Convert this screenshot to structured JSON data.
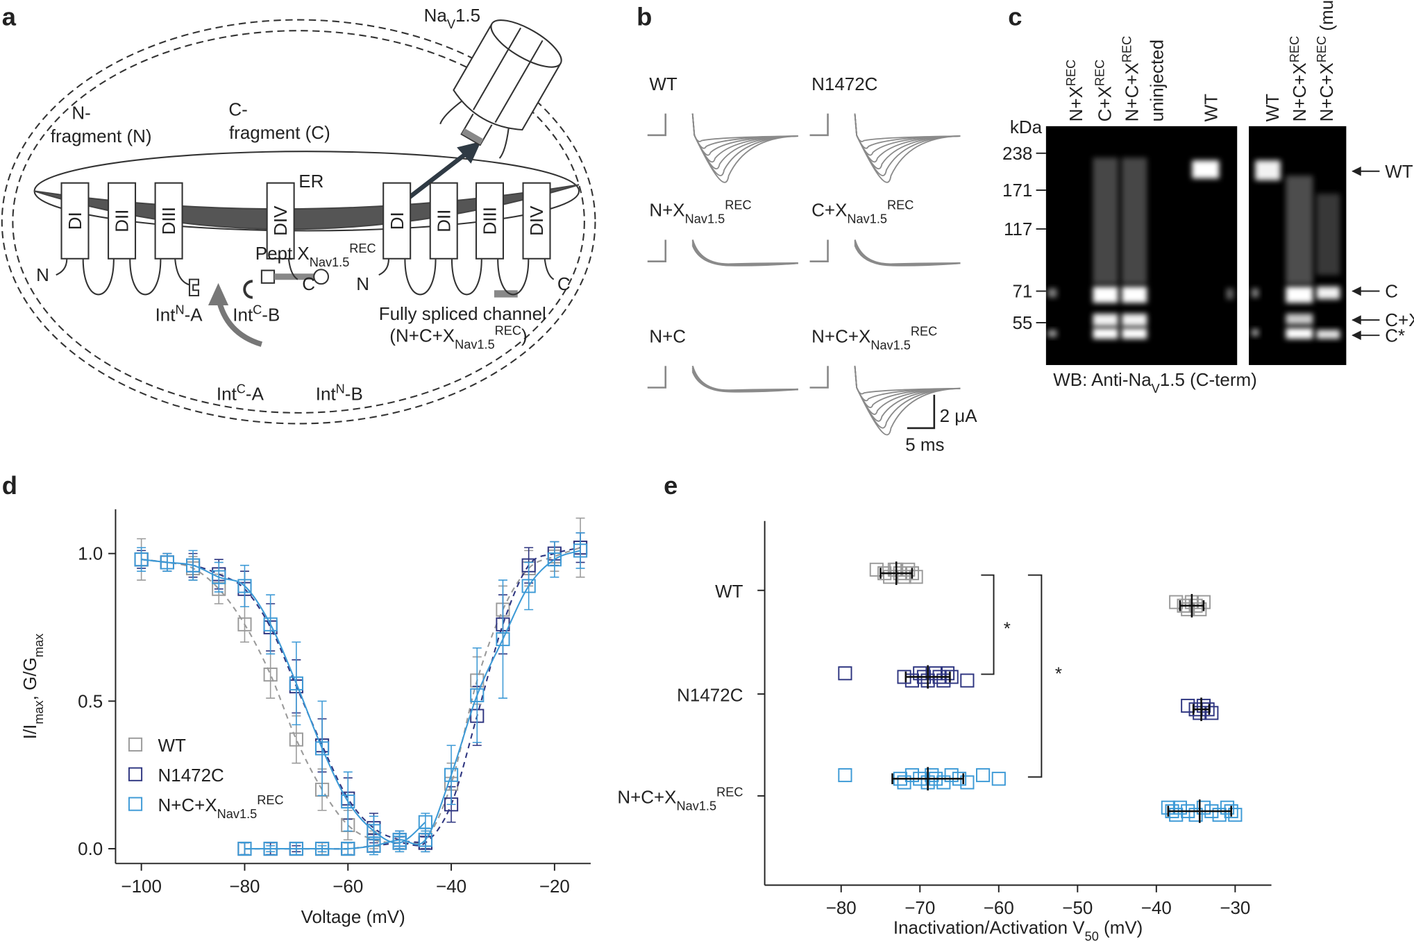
{
  "panels": {
    "a": {
      "label": "a",
      "nav": [
        "Na",
        "V",
        "1.5"
      ],
      "n_fragment": [
        "N-",
        "fragment (N)"
      ],
      "c_fragment": [
        "C-",
        "fragment (C)"
      ],
      "er": "ER",
      "domains_left": [
        "DI",
        "DII",
        "DIII",
        "DIV"
      ],
      "domains_right": [
        "DI",
        "DII",
        "DIII",
        "DIV"
      ],
      "termini": [
        "N",
        "C",
        "N",
        "C"
      ],
      "int_n_a": [
        "Int",
        "N",
        "-A"
      ],
      "int_c_b": [
        "Int",
        "C",
        "-B"
      ],
      "spliced": [
        "Fully spliced channel",
        "(N+C+X",
        "Nav1.5",
        "REC",
        ")"
      ],
      "peptide": [
        "Pept X",
        "Nav1.5",
        "REC"
      ],
      "int_c_a": [
        "Int",
        "C",
        "-A"
      ],
      "int_n_b": [
        "Int",
        "N",
        "-B"
      ]
    },
    "b": {
      "label": "b",
      "conditions": [
        [
          "WT"
        ],
        [
          "N1472C"
        ],
        [
          "N+X",
          "Nav1.5",
          "REC"
        ],
        [
          "C+X",
          "Nav1.5",
          "REC"
        ],
        [
          "N+C"
        ],
        [
          "N+C+X",
          "Nav1.5",
          "REC"
        ]
      ],
      "scale_current": "2 μA",
      "scale_time": "5 ms"
    },
    "c": {
      "label": "c",
      "lanes_left": [
        [
          "N+X",
          "REC"
        ],
        [
          "C+X",
          "REC"
        ],
        [
          "N+C+X",
          "REC"
        ],
        [
          "uninjected"
        ],
        [
          "WT"
        ]
      ],
      "lanes_right": [
        [
          "WT"
        ],
        [
          "N+C+X",
          "REC"
        ],
        [
          "N+C+X",
          "REC",
          " (mut.)"
        ]
      ],
      "marker_unit": "kDa",
      "markers": [
        238,
        171,
        117,
        71,
        55
      ],
      "bands": [
        "WT",
        "C",
        "C+X",
        "C*"
      ],
      "caption": [
        "WB: Anti-Na",
        "V",
        "1.5 (C-term)"
      ]
    }
  },
  "chart_data": [
    {
      "type": "line",
      "panel_label": "d",
      "xlabel": "Voltage (mV)",
      "ylabel": [
        "I/I",
        "max",
        ", G/G",
        "max"
      ],
      "xlim": [
        -105,
        -13
      ],
      "ylim": [
        -0.05,
        1.15
      ],
      "xticks": [
        {
          "value": -100,
          "label": "−100"
        },
        {
          "value": -80,
          "label": "−80"
        },
        {
          "value": -60,
          "label": "−60"
        },
        {
          "value": -40,
          "label": "−40"
        },
        {
          "value": -20,
          "label": "−20"
        }
      ],
      "yticks": [
        {
          "value": 0,
          "label": "0.0"
        },
        {
          "value": 0.5,
          "label": "0.5"
        },
        {
          "value": 1,
          "label": "1.0"
        }
      ],
      "legend": "center left",
      "x": [
        -100,
        -95,
        -90,
        -85,
        -80,
        -75,
        -70,
        -65,
        -60,
        -55,
        -50,
        -45,
        -40,
        -35,
        -30,
        -25,
        -20,
        -15
      ],
      "series": [
        {
          "name": [
            "WT"
          ],
          "color": "#9a9a9a",
          "dashed": true,
          "inactivation": [
            0.98,
            0.97,
            0.95,
            0.88,
            0.76,
            0.59,
            0.37,
            0.2,
            0.08,
            0.03,
            0.02,
            0.02,
            null,
            null,
            null,
            null,
            null,
            null
          ],
          "inactivation_err": [
            0.07,
            0.03,
            0.04,
            0.05,
            0.06,
            0.08,
            0.08,
            0.07,
            0.05,
            0.03,
            0.02,
            0.02,
            null,
            null,
            null,
            null,
            null,
            null
          ],
          "activation": [
            null,
            null,
            null,
            null,
            0,
            0,
            0,
            0,
            0,
            0.01,
            0.02,
            0.03,
            0.22,
            0.57,
            0.81,
            0.95,
            0.99,
            1.02
          ],
          "activation_err": [
            null,
            null,
            null,
            null,
            0.02,
            0.02,
            0.01,
            0.02,
            0.02,
            0.02,
            0.03,
            0.03,
            0.07,
            0.08,
            0.08,
            0.06,
            0.05,
            0.1
          ]
        },
        {
          "name": [
            "N1472C"
          ],
          "color": "#2e3580",
          "dashed": true,
          "inactivation": [
            0.98,
            0.97,
            0.96,
            0.93,
            0.88,
            0.75,
            0.55,
            0.35,
            0.17,
            0.07,
            0.03,
            0.02,
            null,
            null,
            null,
            null,
            null,
            null
          ],
          "inactivation_err": [
            0.03,
            0.03,
            0.04,
            0.05,
            0.06,
            0.08,
            0.09,
            0.09,
            0.07,
            0.05,
            0.03,
            0.02,
            null,
            null,
            null,
            null,
            null,
            null
          ],
          "activation": [
            null,
            null,
            null,
            null,
            0,
            0,
            0,
            0,
            0,
            0.01,
            0.02,
            0.02,
            0.15,
            0.45,
            0.76,
            0.96,
            1.0,
            1.02
          ],
          "activation_err": [
            null,
            null,
            null,
            null,
            0.02,
            0.02,
            0.01,
            0.01,
            0.02,
            0.02,
            0.02,
            0.03,
            0.06,
            0.1,
            0.1,
            0.06,
            0.04,
            0.05
          ]
        },
        {
          "name": [
            "N+C+X",
            "Nav1.5",
            "REC"
          ],
          "color": "#3d9ad6",
          "dashed": false,
          "inactivation": [
            0.98,
            0.97,
            0.96,
            0.92,
            0.89,
            0.76,
            0.56,
            0.34,
            0.16,
            0.06,
            0.02,
            0.09,
            null,
            null,
            null,
            null,
            null,
            null
          ],
          "inactivation_err": [
            0.04,
            0.03,
            0.05,
            0.05,
            0.07,
            0.1,
            0.14,
            0.16,
            0.1,
            0.05,
            0.03,
            0.03,
            null,
            null,
            null,
            null,
            null,
            null
          ],
          "activation": [
            null,
            null,
            null,
            null,
            0,
            0,
            0,
            0,
            0,
            0.01,
            0.03,
            0.03,
            0.25,
            0.52,
            0.71,
            0.89,
            0.98,
            1.01
          ],
          "activation_err": [
            null,
            null,
            null,
            null,
            0.02,
            0.01,
            0.02,
            0.01,
            0.02,
            0.03,
            0.03,
            0.04,
            0.1,
            0.16,
            0.2,
            0.08,
            0.06,
            0.06
          ]
        }
      ]
    },
    {
      "type": "scatter",
      "panel_label": "e",
      "xlabel": [
        "Inactivation/Activation V",
        "50",
        " (mV)"
      ],
      "xlim": [
        -89.7,
        -25.4
      ],
      "xticks": [
        {
          "value": -80,
          "label": "−80"
        },
        {
          "value": -70,
          "label": "−70"
        },
        {
          "value": -60,
          "label": "−60"
        },
        {
          "value": -50,
          "label": "−50"
        },
        {
          "value": -40,
          "label": "−40"
        },
        {
          "value": -30,
          "label": "−30"
        }
      ],
      "categories": [
        [
          "WT"
        ],
        [
          "N1472C"
        ],
        [
          "N+C+X",
          "Nav1.5",
          "REC"
        ]
      ],
      "groups": [
        {
          "color": "#9a9a9a",
          "inactivation": [
            -75.5,
            -74.5,
            -73.8,
            -73,
            -72.5,
            -72,
            -71.5,
            -71,
            -70.5,
            -73.2
          ],
          "inactivation_mean": -73,
          "inactivation_sd": 2,
          "activation": [
            -37.5,
            -36.5,
            -36,
            -35.5,
            -35,
            -34.5,
            -34
          ],
          "activation_mean": -35.5,
          "activation_sd": 1.5
        },
        {
          "color": "#2e3580",
          "inactivation": [
            -79.5,
            -72,
            -71,
            -70,
            -69.5,
            -69,
            -68,
            -67.5,
            -67,
            -66.5,
            -66,
            -64
          ],
          "inactivation_mean": -69,
          "inactivation_sd": 2.8,
          "activation": [
            -36,
            -35,
            -34.5,
            -34,
            -33.5,
            -33
          ],
          "activation_mean": -34.3,
          "activation_sd": 1
        },
        {
          "color": "#3d9ad6",
          "inactivation": [
            -79.5,
            -72.5,
            -72,
            -71,
            -70,
            -69,
            -68.5,
            -68,
            -67,
            -66,
            -65,
            -64,
            -62,
            -60
          ],
          "inactivation_mean": -69,
          "inactivation_sd": 4.5,
          "activation": [
            -38.5,
            -38,
            -37.5,
            -37,
            -36,
            -35,
            -34,
            -33,
            -32,
            -31,
            -30.5,
            -30
          ],
          "activation_mean": -34.5,
          "activation_sd": 4
        }
      ],
      "significance": [
        "*",
        "*"
      ]
    }
  ]
}
